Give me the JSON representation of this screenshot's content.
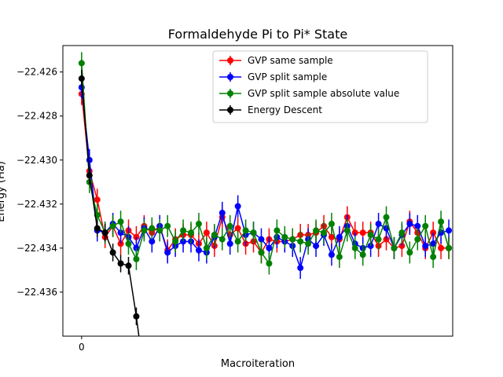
{
  "chart_data": {
    "type": "line",
    "title": "Formaldehyde Pi to Pi* State",
    "xlabel": "Macroiteration",
    "ylabel": "Energy (Ha)",
    "xlim": [
      -2.4,
      47.5
    ],
    "ylim": [
      -22.438,
      -22.4248
    ],
    "xticks": [
      0
    ],
    "yticks": [
      -22.426,
      -22.428,
      -22.43,
      -22.432,
      -22.434,
      -22.436
    ],
    "ytick_labels": [
      "−22.426",
      "−22.428",
      "−22.430",
      "−22.432",
      "−22.434",
      "−22.436"
    ],
    "grid": false,
    "legend_position": "top-right",
    "series": [
      {
        "name": "GVP same sample",
        "color": "#ff0000",
        "x": [
          0,
          1,
          2,
          3,
          4,
          5,
          6,
          7,
          8,
          9,
          10,
          11,
          12,
          13,
          14,
          15,
          16,
          17,
          18,
          19,
          20,
          21,
          22,
          23,
          24,
          25,
          26,
          27,
          28,
          29,
          30,
          31,
          32,
          33,
          34,
          35,
          36,
          37,
          38,
          39,
          40,
          41,
          42,
          43,
          44,
          45,
          46,
          47
        ],
        "y": [
          -22.427,
          -22.4305,
          -22.4318,
          -22.4335,
          -22.433,
          -22.4338,
          -22.4332,
          -22.4335,
          -22.433,
          -22.4333,
          -22.433,
          -22.4341,
          -22.4336,
          -22.4334,
          -22.4334,
          -22.4338,
          -22.4333,
          -22.4339,
          -22.4326,
          -22.4334,
          -22.4331,
          -22.4338,
          -22.4337,
          -22.4342,
          -22.4336,
          -22.4337,
          -22.4337,
          -22.4336,
          -22.4334,
          -22.4334,
          -22.4333,
          -22.433,
          -22.4335,
          -22.4336,
          -22.4326,
          -22.4333,
          -22.4333,
          -22.4333,
          -22.4339,
          -22.4336,
          -22.434,
          -22.4339,
          -22.4328,
          -22.4333,
          -22.434,
          -22.4333,
          -22.434,
          -22.434
        ],
        "yerr": 0.0005
      },
      {
        "name": "GVP split sample",
        "color": "#0000ff",
        "x": [
          0,
          1,
          2,
          3,
          4,
          5,
          6,
          7,
          8,
          9,
          10,
          11,
          12,
          13,
          14,
          15,
          16,
          17,
          18,
          19,
          20,
          21,
          22,
          23,
          24,
          25,
          26,
          27,
          28,
          29,
          30,
          31,
          32,
          33,
          34,
          35,
          36,
          37,
          38,
          39,
          40,
          41,
          42,
          43,
          44,
          45,
          46,
          47
        ],
        "y": [
          -22.4267,
          -22.43,
          -22.4332,
          -22.4333,
          -22.4329,
          -22.4333,
          -22.4335,
          -22.434,
          -22.4331,
          -22.4337,
          -22.433,
          -22.4342,
          -22.4339,
          -22.4337,
          -22.4337,
          -22.4341,
          -22.4342,
          -22.4335,
          -22.4324,
          -22.4338,
          -22.4321,
          -22.4334,
          -22.4333,
          -22.4336,
          -22.434,
          -22.4335,
          -22.4337,
          -22.4339,
          -22.4349,
          -22.4336,
          -22.4339,
          -22.4334,
          -22.4343,
          -22.4335,
          -22.433,
          -22.4338,
          -22.434,
          -22.4339,
          -22.4329,
          -22.4331,
          -22.434,
          -22.4334,
          -22.4329,
          -22.433,
          -22.4339,
          -22.4338,
          -22.4333,
          -22.4332
        ],
        "yerr": 0.0005
      },
      {
        "name": "GVP split sample absolute value",
        "color": "#008000",
        "x": [
          0,
          1,
          2,
          3,
          4,
          5,
          6,
          7,
          8,
          9,
          10,
          11,
          12,
          13,
          14,
          15,
          16,
          17,
          18,
          19,
          20,
          21,
          22,
          23,
          24,
          25,
          26,
          27,
          28,
          29,
          30,
          31,
          32,
          33,
          34,
          35,
          36,
          37,
          38,
          39,
          40,
          41,
          42,
          43,
          44,
          45,
          46,
          47
        ],
        "y": [
          -22.4256,
          -22.431,
          -22.4325,
          -22.4333,
          -22.433,
          -22.4328,
          -22.4338,
          -22.4345,
          -22.4332,
          -22.4331,
          -22.4332,
          -22.433,
          -22.4337,
          -22.4332,
          -22.4333,
          -22.4329,
          -22.434,
          -22.4334,
          -22.4336,
          -22.433,
          -22.4337,
          -22.4332,
          -22.4333,
          -22.4342,
          -22.4347,
          -22.4332,
          -22.4335,
          -22.4336,
          -22.4337,
          -22.4338,
          -22.4332,
          -22.4333,
          -22.4329,
          -22.4344,
          -22.4332,
          -22.434,
          -22.4343,
          -22.4334,
          -22.4336,
          -22.4326,
          -22.434,
          -22.4333,
          -22.4342,
          -22.4336,
          -22.433,
          -22.4344,
          -22.4328,
          -22.434
        ],
        "yerr": 0.0005
      },
      {
        "name": "Energy Descent",
        "color": "#000000",
        "x": [
          0,
          1,
          2,
          3,
          4,
          5,
          6,
          7,
          8
        ],
        "y": [
          -22.4263,
          -22.4307,
          -22.4331,
          -22.4333,
          -22.4342,
          -22.4347,
          -22.4348,
          -22.4371,
          -22.4398
        ],
        "yerr": 0.0004
      }
    ]
  }
}
